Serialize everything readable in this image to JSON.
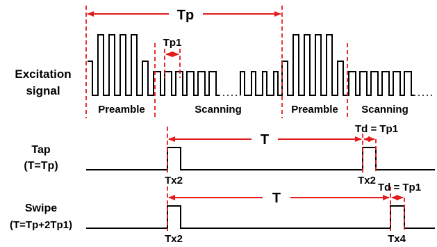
{
  "row_labels": {
    "excitation_line1": "Excitation",
    "excitation_line2": "signal",
    "tap_line1": "Tap",
    "tap_line2": "(T=Tp)",
    "swipe_line1": "Swipe",
    "swipe_line2": "(T=Tp+2Tp1)"
  },
  "phase_labels": {
    "preamble_1": "Preamble",
    "scanning_1": "Scanning",
    "preamble_2": "Preamble",
    "scanning_2": "Scanning"
  },
  "intervals": {
    "period": "Tp",
    "sub_period": "Tp1",
    "tap_T": "T",
    "swipe_T": "T",
    "tap_delay": "Td = Tp1",
    "swipe_delay": "Td = Tp1"
  },
  "pulse_labels": {
    "tap_first": "Tx2",
    "tap_second": "Tx2",
    "swipe_first": "Tx2",
    "swipe_second": "Tx4"
  },
  "colors": {
    "signal": "#000000",
    "annotation": "#e31b1b"
  }
}
